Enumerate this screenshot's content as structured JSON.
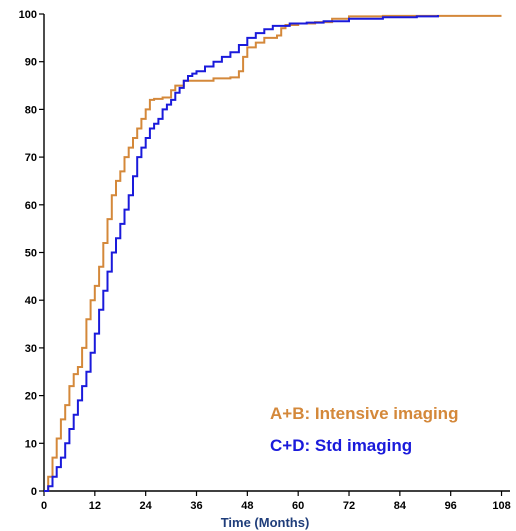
{
  "chart_data": {
    "type": "line",
    "step": true,
    "xlabel": "Time (Months)",
    "ylabel": "",
    "xlim": [
      0,
      110
    ],
    "ylim": [
      0,
      100
    ],
    "xticks": [
      "0",
      "12",
      "24",
      "36",
      "48",
      "60",
      "72",
      "84",
      "96",
      "108"
    ],
    "xtick_values": [
      0,
      12,
      24,
      36,
      48,
      60,
      72,
      84,
      96,
      108
    ],
    "yticks": [
      "0",
      "10",
      "20",
      "30",
      "40",
      "50",
      "60",
      "70",
      "80",
      "90",
      "100"
    ],
    "ytick_values": [
      0,
      10,
      20,
      30,
      40,
      50,
      60,
      70,
      80,
      90,
      100
    ],
    "grid": false,
    "legend_position": "bottom-right",
    "series": [
      {
        "name": "A+B: Intensive imaging",
        "color": "#d4883a",
        "points": [
          [
            0,
            0
          ],
          [
            1,
            3
          ],
          [
            2,
            7
          ],
          [
            3,
            11
          ],
          [
            4,
            15
          ],
          [
            5,
            18
          ],
          [
            6,
            22
          ],
          [
            7,
            24.5
          ],
          [
            8,
            26
          ],
          [
            9,
            30
          ],
          [
            10,
            36
          ],
          [
            11,
            40
          ],
          [
            12,
            43
          ],
          [
            13,
            47
          ],
          [
            14,
            52
          ],
          [
            15,
            57
          ],
          [
            16,
            62
          ],
          [
            17,
            65
          ],
          [
            18,
            67
          ],
          [
            19,
            70
          ],
          [
            20,
            72
          ],
          [
            21,
            74
          ],
          [
            22,
            76
          ],
          [
            23,
            78
          ],
          [
            24,
            80
          ],
          [
            25,
            82
          ],
          [
            26,
            82.2
          ],
          [
            28,
            82.5
          ],
          [
            30,
            84
          ],
          [
            31,
            85
          ],
          [
            33,
            86
          ],
          [
            36,
            86
          ],
          [
            40,
            86.5
          ],
          [
            44,
            86.7
          ],
          [
            46,
            88
          ],
          [
            47,
            91
          ],
          [
            48,
            93
          ],
          [
            50,
            94
          ],
          [
            52,
            95
          ],
          [
            55,
            95.5
          ],
          [
            56,
            97
          ],
          [
            57,
            97.7
          ],
          [
            60,
            98
          ],
          [
            64,
            98.3
          ],
          [
            68,
            99
          ],
          [
            72,
            99.5
          ],
          [
            80,
            99.6
          ],
          [
            90,
            99.6
          ],
          [
            100,
            99.6
          ],
          [
            108,
            99.6
          ]
        ]
      },
      {
        "name": "C+D: Std imaging",
        "color": "#1a1adb",
        "points": [
          [
            0,
            0
          ],
          [
            1,
            1
          ],
          [
            2,
            3
          ],
          [
            3,
            5
          ],
          [
            4,
            7
          ],
          [
            5,
            10
          ],
          [
            6,
            13
          ],
          [
            7,
            16
          ],
          [
            8,
            19
          ],
          [
            9,
            22
          ],
          [
            10,
            25
          ],
          [
            11,
            29
          ],
          [
            12,
            33
          ],
          [
            13,
            38
          ],
          [
            14,
            42
          ],
          [
            15,
            46
          ],
          [
            16,
            50
          ],
          [
            17,
            53
          ],
          [
            18,
            56
          ],
          [
            19,
            59
          ],
          [
            20,
            62
          ],
          [
            21,
            66
          ],
          [
            22,
            70
          ],
          [
            23,
            72
          ],
          [
            24,
            74
          ],
          [
            25,
            76
          ],
          [
            26,
            77
          ],
          [
            27,
            78
          ],
          [
            28,
            80
          ],
          [
            29,
            81
          ],
          [
            30,
            82
          ],
          [
            31,
            83.5
          ],
          [
            32,
            84.5
          ],
          [
            33,
            86
          ],
          [
            34,
            87
          ],
          [
            35,
            87.5
          ],
          [
            36,
            88
          ],
          [
            38,
            89
          ],
          [
            40,
            90
          ],
          [
            42,
            91
          ],
          [
            44,
            92
          ],
          [
            46,
            93.5
          ],
          [
            48,
            95
          ],
          [
            50,
            96
          ],
          [
            52,
            96.8
          ],
          [
            54,
            97.5
          ],
          [
            58,
            98
          ],
          [
            62,
            98.2
          ],
          [
            66,
            98.5
          ],
          [
            72,
            99
          ],
          [
            80,
            99.3
          ],
          [
            88,
            99.5
          ],
          [
            93,
            99.8
          ]
        ]
      }
    ]
  }
}
